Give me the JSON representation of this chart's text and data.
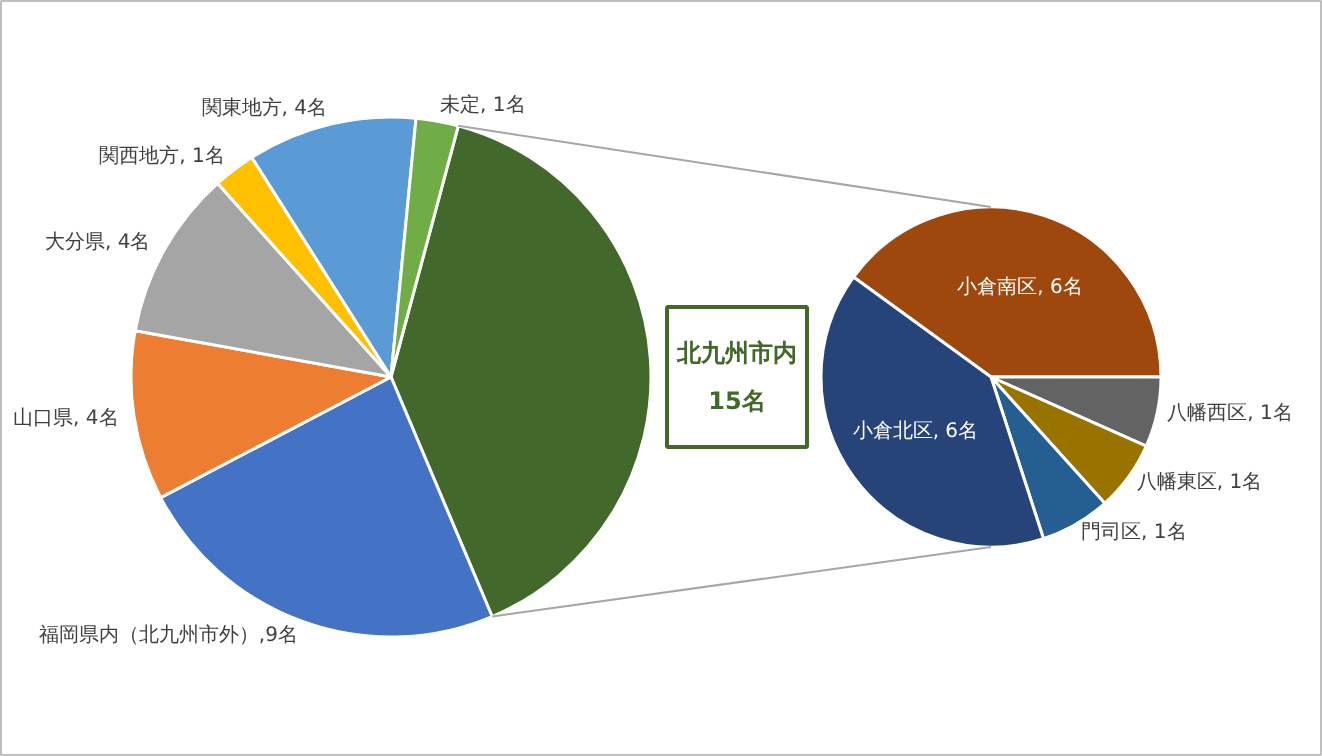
{
  "chart_data": [
    {
      "type": "pie",
      "categories": [
        "北九州市内",
        "福岡県内（北九州市外）",
        "山口県",
        "大分県",
        "関西地方",
        "関東地方",
        "未定"
      ],
      "values": [
        15,
        9,
        4,
        4,
        1,
        4,
        1
      ],
      "colors": [
        "#43682b",
        "#4472c4",
        "#ed7d31",
        "#a5a5a5",
        "#ffc000",
        "#5b9bd5",
        "#70ad47"
      ],
      "value_labels": [
        "15名",
        ",9名",
        ", 4名",
        ", 4名",
        ", 1名",
        ", 4名",
        ", 1名"
      ]
    },
    {
      "type": "pie",
      "categories": [
        "小倉南区",
        "八幡西区",
        "八幡東区",
        "門司区",
        "小倉北区"
      ],
      "values": [
        6,
        1,
        1,
        1,
        6
      ],
      "colors": [
        "#9e480e",
        "#636363",
        "#997300",
        "#255e91",
        "#264478"
      ],
      "value_labels": [
        ", 6名",
        ", 1名",
        ", 1名",
        ", 1名",
        ", 6名"
      ]
    }
  ]
}
